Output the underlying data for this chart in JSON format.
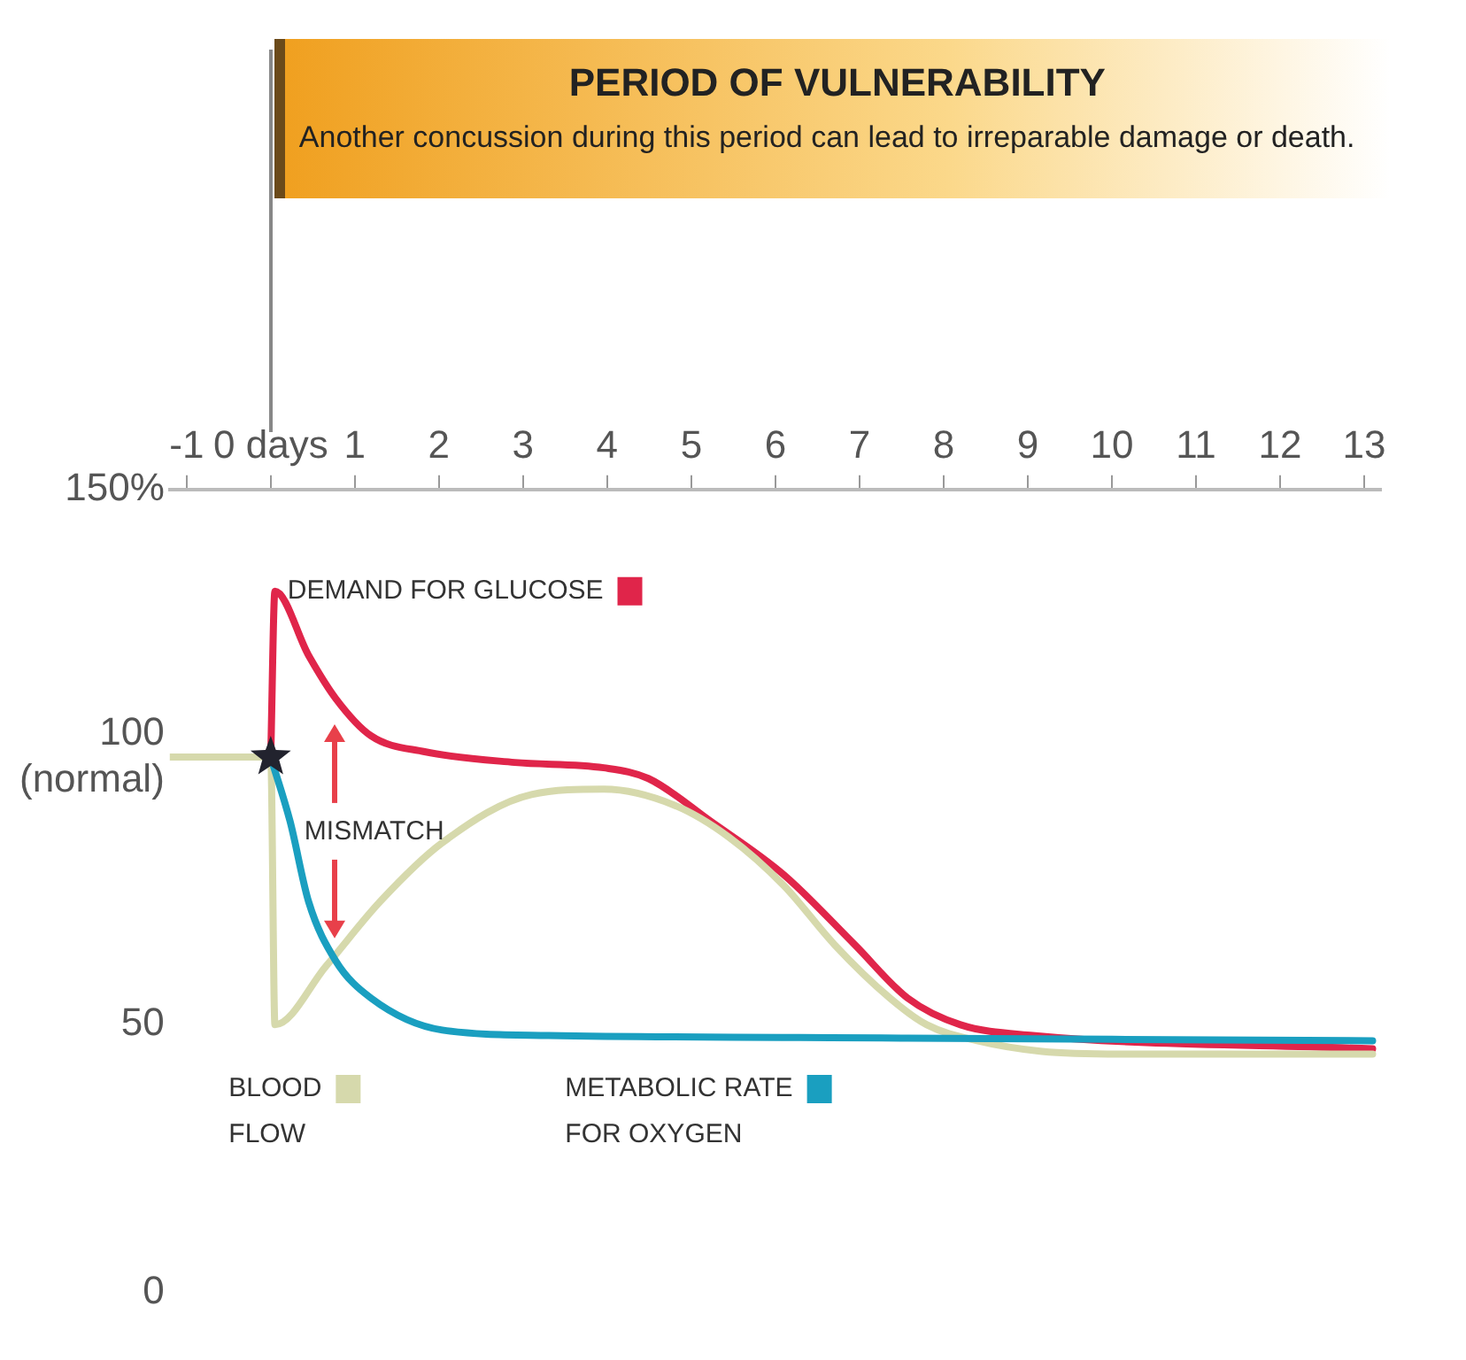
{
  "chart_data": {
    "type": "line",
    "title": "PERIOD OF VULNERABILITY",
    "subtitle": "Another concussion during this period can lead to irreparable damage or death.",
    "xlim": [
      -1.2,
      13.2
    ],
    "xticks": [
      -1,
      {
        "value": 0,
        "label": "0 days"
      },
      1,
      2,
      3,
      4,
      5,
      6,
      7,
      8,
      9,
      10,
      11,
      12,
      13
    ],
    "ylim": [
      0,
      150
    ],
    "yticks": [
      0,
      50,
      {
        "value": 100,
        "label": "100 (normal)"
      },
      {
        "value": 150,
        "label": "150%"
      }
    ],
    "grid": false,
    "legend": "top left",
    "marker": "none",
    "line_style": "solid",
    "series": [
      {
        "name": "DEMAND FOR GLUCOSE",
        "color": "#e0254a",
        "x": [
          0,
          0.05,
          0.45,
          0.77,
          1.19,
          1.83,
          2.9,
          3.96,
          4.49,
          5.23,
          6.1,
          6.94,
          7.57,
          8.2,
          9.06,
          13.1
        ],
        "values": [
          100,
          131,
          119,
          111,
          104,
          101,
          99,
          98,
          96,
          88,
          78,
          65,
          55,
          50,
          48,
          45.5
        ]
      },
      {
        "name": "BLOOD FLOW",
        "color": "#d6d9ac",
        "x": [
          -1.2,
          0,
          0.05,
          0.66,
          1.3,
          2.04,
          3.1,
          3.96,
          4.8,
          5.45,
          6.1,
          6.7,
          7.36,
          7.8,
          8.4,
          9.17,
          10.1,
          13.1
        ],
        "values": [
          100,
          100,
          50,
          61,
          73,
          84,
          93,
          94,
          91,
          85,
          76,
          65,
          55,
          50,
          47,
          45,
          44.5,
          44.5
        ]
      },
      {
        "name": "METABOLIC RATE FOR OXYGEN",
        "color": "#1a9fc0",
        "x": [
          0,
          0.23,
          0.45,
          0.77,
          1.19,
          2.04,
          3.3,
          7.57,
          13.1
        ],
        "values": [
          100,
          88,
          73,
          62,
          55,
          49,
          48,
          47.5,
          47
        ]
      },
      {
        "type": "scatter",
        "marker": "star",
        "color": "#22232e",
        "x": [
          0
        ],
        "values": [
          100
        ]
      }
    ],
    "annotations": [
      "MISMATCH"
    ]
  }
}
